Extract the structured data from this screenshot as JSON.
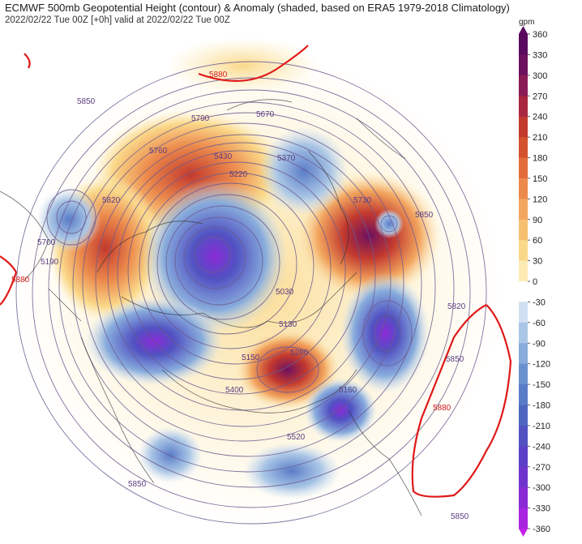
{
  "header": {
    "title": "ECMWF 500mb Geopotential Height (contour) & Anomaly (shaded, based on ERA5 1979-2018 Climatology)",
    "subtitle": "2022/02/22 Tue 00Z [+0h] valid at 2022/02/22 Tue 00Z"
  },
  "colorbar": {
    "unit": "gpm",
    "ticks": [
      "360",
      "330",
      "300",
      "270",
      "240",
      "210",
      "180",
      "150",
      "120",
      "90",
      "60",
      "30",
      "0",
      "-30",
      "-60",
      "-90",
      "-120",
      "-150",
      "-180",
      "-210",
      "-240",
      "-270",
      "-300",
      "-330",
      "-360"
    ],
    "colors": [
      "#5a0a5e",
      "#6e1060",
      "#8a1a55",
      "#a8263f",
      "#c2392e",
      "#d4512c",
      "#e36d3a",
      "#ec8a4c",
      "#f2a65f",
      "#f6c070",
      "#fad88a",
      "#fdebb4",
      "#ffffff",
      "#cfe0f2",
      "#aac6e6",
      "#88acdc",
      "#6a92d0",
      "#5a7cc8",
      "#4f66c0",
      "#5151c2",
      "#5b3fc6",
      "#6e34cc",
      "#8a2ad6",
      "#a824e0",
      "#c020ea"
    ]
  },
  "map": {
    "contour_labels": [
      {
        "id": "c5880-ne",
        "text": "5880",
        "red": true
      },
      {
        "id": "c5850-nw",
        "text": "5850"
      },
      {
        "id": "c5790",
        "text": "5790"
      },
      {
        "id": "c5670",
        "text": "5670"
      },
      {
        "id": "c5760",
        "text": "5760"
      },
      {
        "id": "c5430",
        "text": "5430"
      },
      {
        "id": "c5370",
        "text": "5370"
      },
      {
        "id": "c5220",
        "text": "5220"
      },
      {
        "id": "c5820-w",
        "text": "5820"
      },
      {
        "id": "c5700",
        "text": "5700"
      },
      {
        "id": "c5730-e",
        "text": "5730"
      },
      {
        "id": "c5850-e",
        "text": "5850"
      },
      {
        "id": "c5190",
        "text": "5190"
      },
      {
        "id": "c5880-w",
        "text": "5880",
        "red": true
      },
      {
        "id": "c5820-e",
        "text": "5820"
      },
      {
        "id": "c5030",
        "text": "5030"
      },
      {
        "id": "c5130",
        "text": "5130"
      },
      {
        "id": "c5160",
        "text": "5160"
      },
      {
        "id": "c5280",
        "text": "5280"
      },
      {
        "id": "c5150",
        "text": "5150"
      },
      {
        "id": "c5400",
        "text": "5400"
      },
      {
        "id": "c5520",
        "text": "5520"
      },
      {
        "id": "c5850-se",
        "text": "5850"
      },
      {
        "id": "c5880-se",
        "text": "5880",
        "red": true
      },
      {
        "id": "c5850-s",
        "text": "5850"
      },
      {
        "id": "c5850-sw",
        "text": "5850"
      }
    ]
  }
}
